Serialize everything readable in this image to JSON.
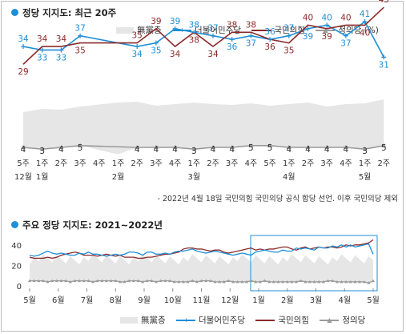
{
  "top_section": {
    "title": "정당 지지도: 최근 20주"
  },
  "bottom_section": {
    "title": "주요 정당 지지도: 2021~2022년"
  },
  "note": "- 2022년 4월 18일 국민의힘 국민의당 공식 합당 선언. 이후 국민의당 제외",
  "legend": {
    "unaffiliated": "無黨층",
    "democratic": "더불어민주당",
    "ppp": "국민의힘",
    "justice": "정의당 (%)",
    "justice_short": "정의당"
  },
  "colors": {
    "democratic": "#1e8fd6",
    "ppp": "#8b2a2a",
    "justice": "#9a9a9a",
    "unaffiliated": "#e6e6e6"
  },
  "chart_data": [
    {
      "type": "line",
      "title": "정당 지지도: 최근 20주",
      "x_week_labels": [
        "5주",
        "1주",
        "2주",
        "3주",
        "4주",
        "1주",
        "2주",
        "3주",
        "4주",
        "1주",
        "2주",
        "3주",
        "4주",
        "5주",
        "1주",
        "2주",
        "3주",
        "4주",
        "1주",
        "2주"
      ],
      "x_month_labels": [
        {
          "index": 0,
          "label": "12월"
        },
        {
          "index": 1,
          "label": "1월"
        },
        {
          "index": 5,
          "label": "2월"
        },
        {
          "index": 9,
          "label": "3월"
        },
        {
          "index": 14,
          "label": "4월"
        },
        {
          "index": 18,
          "label": "5월"
        }
      ],
      "series": [
        {
          "name": "더불어민주당",
          "values": [
            34,
            33,
            33,
            37,
            null,
            34,
            35,
            39,
            38,
            37,
            36,
            37,
            36,
            37,
            39,
            40,
            37,
            41,
            31
          ]
        },
        {
          "name": "국민의힘",
          "values": [
            29,
            34,
            34,
            35,
            null,
            35,
            39,
            34,
            38,
            34,
            38,
            38,
            36,
            35,
            40,
            39,
            40,
            40,
            45
          ]
        },
        {
          "name": "정의당",
          "values": [
            4,
            3,
            4,
            5,
            null,
            4,
            4,
            4,
            3,
            4,
            4,
            5,
            5,
            4,
            4,
            4,
            4,
            3,
            5
          ]
        }
      ],
      "x_index": [
        0,
        1,
        2,
        3,
        5,
        6,
        7,
        8,
        9,
        10,
        11,
        12,
        13,
        14,
        15,
        16,
        17,
        18,
        19
      ],
      "democratic_labels": [
        34,
        33,
        33,
        37,
        null,
        34,
        35,
        39,
        38,
        37,
        36,
        37,
        36,
        37,
        39,
        40,
        37,
        41,
        31
      ],
      "ppp_labels": [
        29,
        34,
        34,
        35,
        null,
        35,
        39,
        34,
        38,
        34,
        38,
        38,
        36,
        35,
        40,
        39,
        40,
        40,
        45
      ]
    },
    {
      "type": "line",
      "title": "주요 정당 지지도: 2021~2022년",
      "x_month_labels": [
        "5월",
        "6월",
        "7월",
        "8월",
        "9월",
        "10월",
        "11월",
        "12월",
        "1월",
        "2월",
        "3월",
        "4월",
        "5월"
      ],
      "y_ticks": [
        0,
        20,
        40
      ],
      "ylim": [
        0,
        50
      ],
      "series": [
        {
          "name": "더불어민주당",
          "values": [
            30,
            29,
            30,
            32,
            34,
            32,
            31,
            32,
            31,
            30,
            30,
            32,
            31,
            33,
            31,
            31,
            30,
            29,
            30,
            31,
            30,
            31,
            33,
            33,
            32,
            30,
            33,
            33,
            31,
            31,
            32,
            31,
            33,
            34,
            34,
            35,
            36,
            34,
            33,
            32,
            33,
            34,
            33,
            32,
            31,
            30,
            31,
            32,
            31,
            30,
            33,
            34,
            35,
            34,
            33,
            33,
            35,
            34,
            34,
            37,
            36,
            37,
            36,
            35,
            38,
            37,
            37,
            39,
            38,
            40,
            38,
            40,
            38,
            39,
            40,
            41,
            31
          ]
        },
        {
          "name": "국민의힘",
          "values": [
            28,
            27,
            27,
            27,
            28,
            27,
            28,
            30,
            31,
            32,
            33,
            32,
            30,
            30,
            30,
            29,
            30,
            31,
            30,
            29,
            30,
            28,
            28,
            28,
            27,
            27,
            28,
            28,
            29,
            30,
            31,
            31,
            32,
            33,
            36,
            37,
            37,
            36,
            36,
            35,
            34,
            35,
            35,
            33,
            32,
            33,
            34,
            35,
            36,
            37,
            35,
            36,
            35,
            36,
            36,
            37,
            38,
            38,
            36,
            35,
            37,
            38,
            36,
            37,
            38,
            37,
            38,
            38,
            37,
            38,
            40,
            39,
            40,
            40,
            41,
            42,
            45
          ]
        },
        {
          "name": "정의당",
          "values": [
            5,
            5,
            5,
            5,
            4,
            5,
            5,
            5,
            5,
            4,
            5,
            5,
            5,
            5,
            4,
            5,
            5,
            5,
            5,
            5,
            4,
            4,
            5,
            5,
            5,
            4,
            5,
            5,
            4,
            5,
            5,
            5,
            4,
            4,
            4,
            4,
            5,
            4,
            5,
            5,
            5,
            4,
            4,
            4,
            5,
            4,
            4,
            4,
            4,
            5,
            4,
            4,
            5,
            4,
            4,
            4,
            4,
            4,
            4,
            4,
            5,
            4,
            4,
            4,
            4,
            4,
            5,
            5,
            4,
            4,
            4,
            4,
            4,
            4,
            4,
            3,
            5
          ]
        }
      ]
    }
  ]
}
